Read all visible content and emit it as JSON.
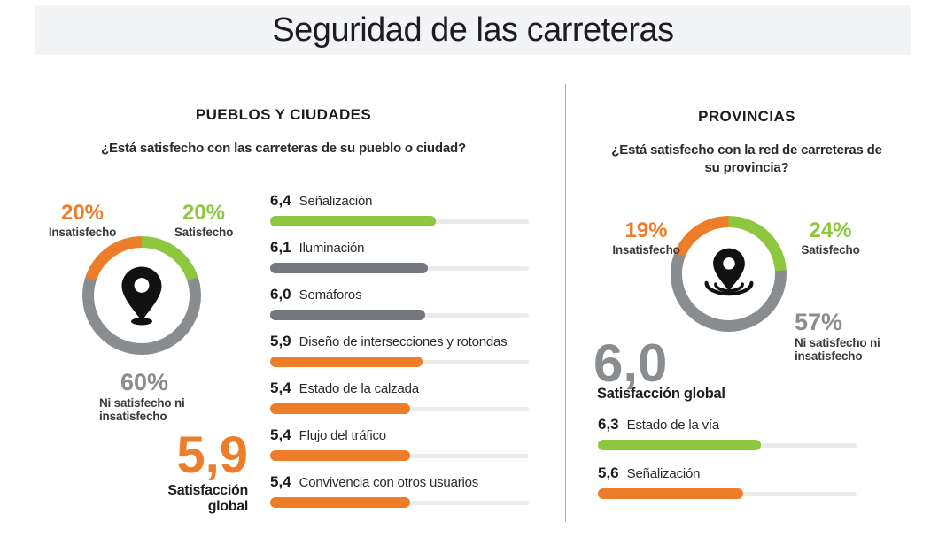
{
  "title": "Seguridad de las carreteras",
  "colors": {
    "orange": "#ED7D28",
    "green": "#8DC63F",
    "gray_bar": "#74777B",
    "gray_donut": "#8A8D90",
    "gray_text": "#8A8D90",
    "track": "#EBEBEB",
    "dark_text": "#1e1e1e",
    "banner_bg": "#F3F4F6"
  },
  "icons": {
    "left_center": "map-pin-icon",
    "right_center": "map-pin-ripples-icon"
  },
  "left": {
    "heading": "PUEBLOS Y CIUDADES",
    "question": "¿Está satisfecho con las carreteras de su pueblo o ciudad?",
    "donut": {
      "segments": [
        {
          "name": "Satisfecho",
          "pct": 20,
          "display": "20%",
          "color": "green"
        },
        {
          "name": "Ni satisfecho ni insatisfecho",
          "pct": 60,
          "display": "60%",
          "color": "gray_donut"
        },
        {
          "name": "Insatisfecho",
          "pct": 20,
          "display": "20%",
          "color": "orange"
        }
      ]
    },
    "global": {
      "value": "5,9",
      "label": "Satisfacción global"
    },
    "bars": [
      {
        "value": "6,4",
        "num": 6.4,
        "label": "Señalización",
        "color": "green"
      },
      {
        "value": "6,1",
        "num": 6.1,
        "label": "Iluminación",
        "color": "gray_bar"
      },
      {
        "value": "6,0",
        "num": 6.0,
        "label": "Semáforos",
        "color": "gray_bar"
      },
      {
        "value": "5,9",
        "num": 5.9,
        "label": "Diseño de intersecciones y rotondas",
        "color": "orange"
      },
      {
        "value": "5,4",
        "num": 5.4,
        "label": "Estado de la calzada",
        "color": "orange"
      },
      {
        "value": "5,4",
        "num": 5.4,
        "label": "Flujo del tráfico",
        "color": "orange"
      },
      {
        "value": "5,4",
        "num": 5.4,
        "label": "Convivencia con otros usuarios",
        "color": "orange"
      }
    ]
  },
  "right": {
    "heading": "PROVINCIAS",
    "question": "¿Está satisfecho con la red de carreteras de su provincia?",
    "donut": {
      "segments": [
        {
          "name": "Satisfecho",
          "pct": 24,
          "display": "24%",
          "color": "green"
        },
        {
          "name": "Ni satisfecho ni insatisfecho",
          "pct": 57,
          "display": "57%",
          "color": "gray_donut"
        },
        {
          "name": "Insatisfecho",
          "pct": 19,
          "display": "19%",
          "color": "orange"
        }
      ]
    },
    "global": {
      "value": "6,0",
      "label": "Satisfacción global"
    },
    "bars": [
      {
        "value": "6,3",
        "num": 6.3,
        "label": "Estado de la vía",
        "color": "green"
      },
      {
        "value": "5,6",
        "num": 5.6,
        "label": "Señalización",
        "color": "orange"
      }
    ]
  },
  "chart_data": [
    {
      "type": "pie",
      "title": "Pueblos y ciudades: satisfacción con las carreteras",
      "labels": [
        "Satisfecho",
        "Ni satisfecho ni insatisfecho",
        "Insatisfecho"
      ],
      "values": [
        20,
        60,
        20
      ],
      "unit": "%",
      "colors": [
        "#8DC63F",
        "#8A8D90",
        "#ED7D28"
      ],
      "annotation": "Satisfacción global 5,9"
    },
    {
      "type": "bar",
      "title": "Pueblos y ciudades: valoración por aspecto",
      "categories": [
        "Señalización",
        "Iluminación",
        "Semáforos",
        "Diseño de intersecciones y rotondas",
        "Estado de la calzada",
        "Flujo del tráfico",
        "Convivencia con otros usuarios"
      ],
      "values": [
        6.4,
        6.1,
        6.0,
        5.9,
        5.4,
        5.4,
        5.4
      ],
      "xlim": [
        0,
        10
      ]
    },
    {
      "type": "pie",
      "title": "Provincias: satisfacción con la red de carreteras",
      "labels": [
        "Satisfecho",
        "Ni satisfecho ni insatisfecho",
        "Insatisfecho"
      ],
      "values": [
        24,
        57,
        19
      ],
      "unit": "%",
      "colors": [
        "#8DC63F",
        "#8A8D90",
        "#ED7D28"
      ],
      "annotation": "Satisfacción global 6,0"
    },
    {
      "type": "bar",
      "title": "Provincias: valoración por aspecto",
      "categories": [
        "Estado de la vía",
        "Señalización"
      ],
      "values": [
        6.3,
        5.6
      ],
      "xlim": [
        0,
        10
      ]
    }
  ]
}
